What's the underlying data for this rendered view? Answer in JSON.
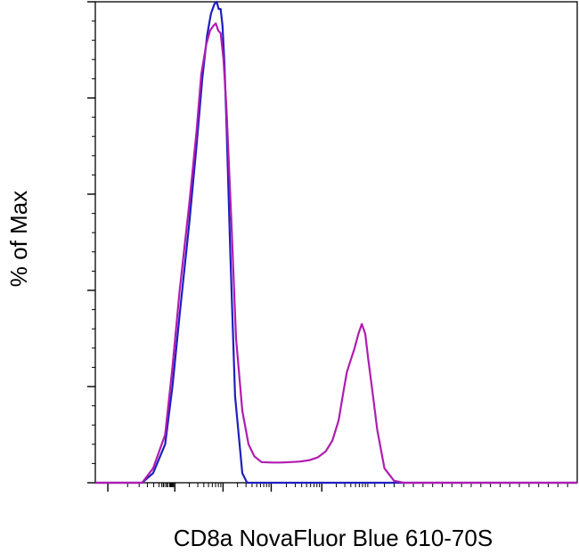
{
  "chart_data": {
    "type": "line",
    "title": "",
    "xlabel": "CD8a NovaFluor Blue 610-70S",
    "ylabel": "% of Max",
    "x_scale": "biexponential (unlabeled ticks)",
    "xlim": [
      0,
      1000
    ],
    "ylim": [
      0,
      100
    ],
    "grid": false,
    "legend": "none",
    "tick_labels_shown": false,
    "series": [
      {
        "color": "#1f1fbf",
        "x": [
          0,
          97,
          120,
          145,
          160,
          175,
          195,
          210,
          222,
          232,
          240,
          247,
          252,
          256,
          260,
          264,
          268,
          272,
          280,
          290,
          305,
          315,
          330,
          1000
        ],
        "y": [
          0,
          0,
          2,
          8,
          20,
          35,
          54,
          70,
          84,
          93,
          97.5,
          99.5,
          100,
          98.5,
          98.5,
          95,
          87,
          75,
          48,
          18,
          2,
          0,
          0,
          0
        ]
      },
      {
        "color": "#b01cb0",
        "x": [
          0,
          97,
          120,
          145,
          160,
          175,
          195,
          210,
          220,
          230,
          238,
          245,
          250,
          255,
          260,
          266,
          272,
          282,
          292,
          305,
          318,
          330,
          345,
          365,
          385,
          405,
          425,
          445,
          462,
          478,
          492,
          505,
          515,
          522,
          530,
          538,
          546,
          553,
          560,
          566,
          575,
          585,
          600,
          620,
          640,
          660,
          1000
        ],
        "y": [
          0,
          0,
          3,
          10,
          24,
          40,
          58,
          73,
          85,
          91,
          94,
          95,
          95.5,
          94,
          93.5,
          88,
          78,
          55,
          30,
          15,
          8,
          5.5,
          4.3,
          4.2,
          4.2,
          4.3,
          4.4,
          4.7,
          5.3,
          6.5,
          8.8,
          13,
          19,
          23,
          25.5,
          28,
          31,
          33,
          31,
          26,
          19,
          11,
          3,
          0.4,
          0,
          0,
          0
        ]
      }
    ]
  }
}
